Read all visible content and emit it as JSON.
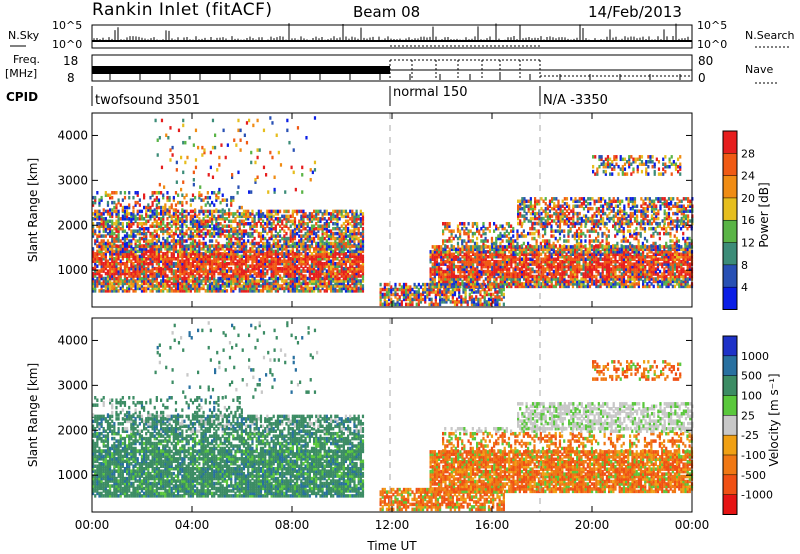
{
  "header": {
    "station": "Rankin Inlet (fitACF)",
    "beam": "Beam 08",
    "date": "14/Feb/2013"
  },
  "summary_panels": {
    "nsky_label": "N.Sky",
    "nsky_ticks": [
      "10^5",
      "10^0"
    ],
    "nsearch_label": "N.Search",
    "nsearch_ticks": [
      "10^5",
      "10^0"
    ],
    "freq_label_line1": "Freq.",
    "freq_label_line2": "[MHz]",
    "freq_ticks": [
      "18",
      "8"
    ],
    "nave_label": "Nave",
    "nave_ticks": [
      "80",
      "0"
    ],
    "cpid_label": "CPID",
    "cpid_segments": [
      {
        "label": "twofsound 3501",
        "start_hour": 0,
        "end_hour": 12
      },
      {
        "label": "normal 150",
        "start_hour": 12,
        "end_hour": 18
      },
      {
        "label": "N/A -3350",
        "start_hour": 18,
        "end_hour": 24
      }
    ]
  },
  "chart_data": [
    {
      "type": "heatmap",
      "name": "power",
      "ylabel": "Slant Range [km]",
      "xlabel": "",
      "x_ticks": [
        "00:00",
        "04:00",
        "08:00",
        "12:00",
        "16:00",
        "20:00",
        "00:00"
      ],
      "y_ticks": [
        "1000",
        "2000",
        "3000",
        "4000"
      ],
      "xlim_hours": [
        0,
        24
      ],
      "ylim_km": [
        180,
        4500
      ],
      "colorbar_label": "Power [dB]",
      "colorbar_ticks": [
        "4",
        "8",
        "12",
        "16",
        "20",
        "24",
        "28"
      ],
      "colorbar_colors": [
        "#0a1ee6",
        "#2850b4",
        "#3c8c78",
        "#5ab446",
        "#e6be1e",
        "#f08c14",
        "#f05a14",
        "#e61e1e"
      ],
      "mode_change_hours": [
        12,
        18
      ]
    },
    {
      "type": "heatmap",
      "name": "velocity",
      "ylabel": "Slant Range [km]",
      "xlabel": "Time UT",
      "x_ticks": [
        "00:00",
        "04:00",
        "08:00",
        "12:00",
        "16:00",
        "20:00",
        "00:00"
      ],
      "y_ticks": [
        "1000",
        "2000",
        "3000",
        "4000"
      ],
      "xlim_hours": [
        0,
        24
      ],
      "ylim_km": [
        180,
        4500
      ],
      "colorbar_label": "Velocity [m s⁻¹]",
      "colorbar_ticks": [
        "1000",
        "500",
        "100",
        "25",
        "-25",
        "-100",
        "-500",
        "-1000"
      ],
      "colorbar_colors": [
        "#1e32c8",
        "#2870a0",
        "#3c8c64",
        "#5ac83c",
        "#c8c8c8",
        "#f0a014",
        "#f07814",
        "#f05014",
        "#e61414"
      ],
      "mode_change_hours": [
        12,
        18
      ]
    }
  ]
}
